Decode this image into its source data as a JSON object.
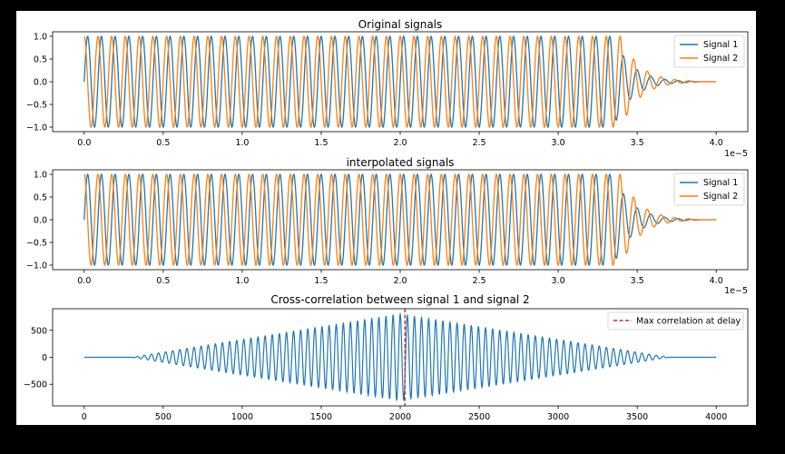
{
  "chart_data": [
    {
      "type": "line",
      "title": "Original signals",
      "xlabel": "",
      "ylabel": "",
      "x_range": [
        0,
        4.0
      ],
      "x_multiplier": "1e−5",
      "xlim": [
        -0.2,
        4.2
      ],
      "ylim": [
        -1.1,
        1.1
      ],
      "xticks": [
        0.0,
        0.5,
        1.0,
        1.5,
        2.0,
        2.5,
        3.0,
        3.5,
        4.0
      ],
      "xtick_labels": [
        "0.0",
        "0.5",
        "1.0",
        "1.5",
        "2.0",
        "2.5",
        "3.0",
        "3.5",
        "4.0"
      ],
      "yticks": [
        1.0,
        0.5,
        0.0,
        -0.5,
        -1.0
      ],
      "ytick_labels": [
        "1.0",
        "0.5",
        "0.0",
        "−0.5",
        "−1.0"
      ],
      "grid": false,
      "legend_position": "top-right",
      "series": [
        {
          "name": "Signal 1",
          "color": "#1f77b4",
          "amplitude": 1.0,
          "cycles_per_unit": 11.5,
          "phase_cycles": 0.0,
          "steady_until": 3.35,
          "decay_end": 3.85
        },
        {
          "name": "Signal 2",
          "color": "#ff7f0e",
          "amplitude": 1.0,
          "cycles_per_unit": 11.5,
          "phase_cycles": 0.25,
          "steady_until": 3.4,
          "decay_end": 3.9
        }
      ]
    },
    {
      "type": "line",
      "title": "interpolated signals",
      "xlabel": "",
      "ylabel": "",
      "x_range": [
        0,
        4.0
      ],
      "x_multiplier": "1e−5",
      "xlim": [
        -0.2,
        4.2
      ],
      "ylim": [
        -1.1,
        1.1
      ],
      "xticks": [
        0.0,
        0.5,
        1.0,
        1.5,
        2.0,
        2.5,
        3.0,
        3.5,
        4.0
      ],
      "xtick_labels": [
        "0.0",
        "0.5",
        "1.0",
        "1.5",
        "2.0",
        "2.5",
        "3.0",
        "3.5",
        "4.0"
      ],
      "yticks": [
        1.0,
        0.5,
        0.0,
        -0.5,
        -1.0
      ],
      "ytick_labels": [
        "1.0",
        "0.5",
        "0.0",
        "−0.5",
        "−1.0"
      ],
      "grid": false,
      "legend_position": "top-right",
      "series": [
        {
          "name": "Signal 1",
          "color": "#1f77b4",
          "amplitude": 1.0,
          "cycles_per_unit": 11.5,
          "phase_cycles": 0.0,
          "steady_until": 3.35,
          "decay_end": 3.85
        },
        {
          "name": "Signal 2",
          "color": "#ff7f0e",
          "amplitude": 1.0,
          "cycles_per_unit": 11.5,
          "phase_cycles": 0.25,
          "steady_until": 3.4,
          "decay_end": 3.9
        }
      ]
    },
    {
      "type": "line",
      "title": "Cross-correlation between signal 1 and signal 2",
      "xlabel": "",
      "ylabel": "",
      "x_range": [
        0,
        4000
      ],
      "xlim": [
        -200,
        4200
      ],
      "ylim": [
        -900,
        900
      ],
      "xticks": [
        0,
        500,
        1000,
        1500,
        2000,
        2500,
        3000,
        3500,
        4000
      ],
      "xtick_labels": [
        "0",
        "500",
        "1000",
        "1500",
        "2000",
        "2500",
        "3000",
        "3500",
        "4000"
      ],
      "yticks": [
        500,
        0,
        -500
      ],
      "ytick_labels": [
        "500",
        "0",
        "−500"
      ],
      "grid": false,
      "legend_position": "top-right",
      "series": [
        {
          "color": "#1f77b4",
          "peak_amplitude": 800,
          "center": 2000,
          "half_width": 1700,
          "period": 45
        }
      ],
      "max_correlation_delay": 2030,
      "marker": {
        "label": "Max correlation at delay",
        "color": "#d62728"
      }
    }
  ]
}
